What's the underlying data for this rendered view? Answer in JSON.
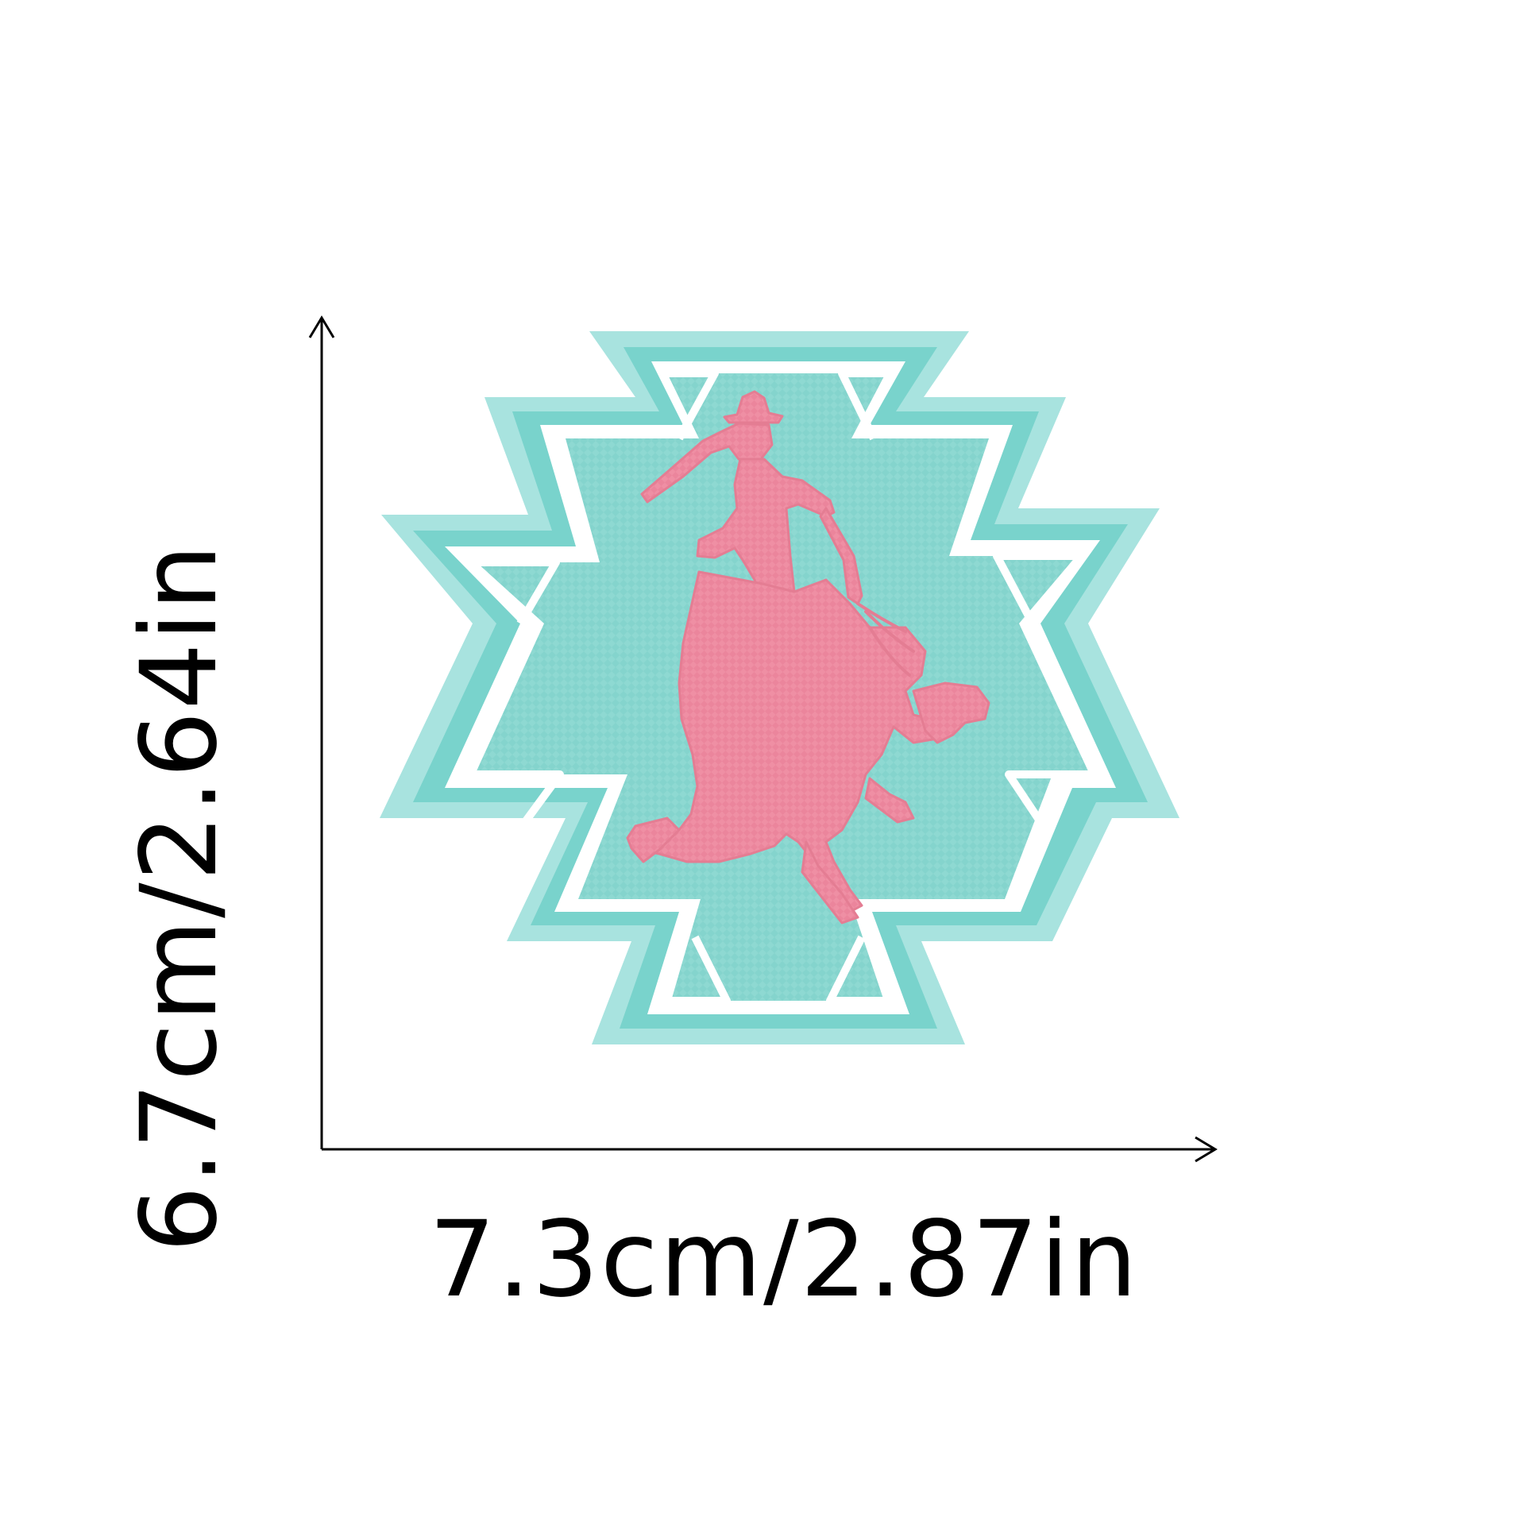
{
  "dimensions": {
    "width_label": "7.3cm/2.87in",
    "height_label": "6.7cm/2.64in"
  },
  "product": {
    "icon": "aztec-bucking-bronco-patch-icon",
    "colors": {
      "felt_border": "#a8e3df",
      "stitch_outline": "#79d3cc",
      "fill": "#8ed9d2",
      "white_band": "#ffffff",
      "rider": "#ef8fa4"
    }
  }
}
